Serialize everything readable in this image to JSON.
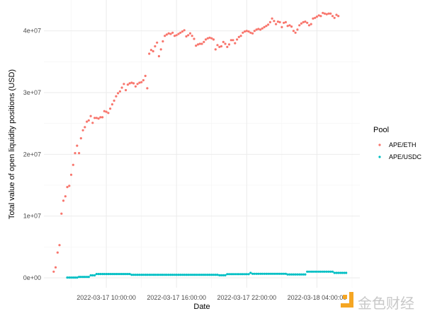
{
  "chart_data": {
    "type": "scatter",
    "title": "",
    "xlabel": "Date",
    "ylabel": "Total value of open liquidity positions (USD)",
    "xlim": [
      "2022-03-17 04:40",
      "2022-03-18 07:40"
    ],
    "ylim": [
      -1600000,
      45000000
    ],
    "grid": true,
    "legend_position": "right",
    "legend_title": "Pool",
    "x_ticks": [
      {
        "value": "2022-03-17 10:00",
        "label": "2022-03-17 10:00:00"
      },
      {
        "value": "2022-03-17 16:00",
        "label": "2022-03-17 16:00:00"
      },
      {
        "value": "2022-03-17 22:00",
        "label": "2022-03-17 22:00:00"
      },
      {
        "value": "2022-03-18 04:00",
        "label": "2022-03-18 04:00:00"
      }
    ],
    "y_ticks": [
      {
        "value": 0,
        "label": "0e+00"
      },
      {
        "value": 10000000,
        "label": "1e+07"
      },
      {
        "value": 20000000,
        "label": "2e+07"
      },
      {
        "value": 30000000,
        "label": "3e+07"
      },
      {
        "value": 40000000,
        "label": "4e+07"
      }
    ],
    "x": [
      "2022-03-17 05:30",
      "2022-03-17 05:40",
      "2022-03-17 05:50",
      "2022-03-17 06:00",
      "2022-03-17 06:10",
      "2022-03-17 06:20",
      "2022-03-17 06:30",
      "2022-03-17 06:40",
      "2022-03-17 06:50",
      "2022-03-17 07:00",
      "2022-03-17 07:10",
      "2022-03-17 07:20",
      "2022-03-17 07:30",
      "2022-03-17 07:40",
      "2022-03-17 07:50",
      "2022-03-17 08:00",
      "2022-03-17 08:10",
      "2022-03-17 08:20",
      "2022-03-17 08:30",
      "2022-03-17 08:40",
      "2022-03-17 08:50",
      "2022-03-17 09:00",
      "2022-03-17 09:10",
      "2022-03-17 09:20",
      "2022-03-17 09:30",
      "2022-03-17 09:40",
      "2022-03-17 09:50",
      "2022-03-17 10:00",
      "2022-03-17 10:10",
      "2022-03-17 10:20",
      "2022-03-17 10:30",
      "2022-03-17 10:40",
      "2022-03-17 10:50",
      "2022-03-17 11:00",
      "2022-03-17 11:10",
      "2022-03-17 11:20",
      "2022-03-17 11:30",
      "2022-03-17 11:40",
      "2022-03-17 11:50",
      "2022-03-17 12:00",
      "2022-03-17 12:10",
      "2022-03-17 12:20",
      "2022-03-17 12:30",
      "2022-03-17 12:40",
      "2022-03-17 12:50",
      "2022-03-17 13:00",
      "2022-03-17 13:10",
      "2022-03-17 13:20",
      "2022-03-17 13:30",
      "2022-03-17 13:40",
      "2022-03-17 13:50",
      "2022-03-17 14:00",
      "2022-03-17 14:10",
      "2022-03-17 14:20",
      "2022-03-17 14:30",
      "2022-03-17 14:40",
      "2022-03-17 14:50",
      "2022-03-17 15:00",
      "2022-03-17 15:10",
      "2022-03-17 15:20",
      "2022-03-17 15:30",
      "2022-03-17 15:40",
      "2022-03-17 15:50",
      "2022-03-17 16:00",
      "2022-03-17 16:10",
      "2022-03-17 16:20",
      "2022-03-17 16:30",
      "2022-03-17 16:40",
      "2022-03-17 16:50",
      "2022-03-17 17:00",
      "2022-03-17 17:10",
      "2022-03-17 17:20",
      "2022-03-17 17:30",
      "2022-03-17 17:40",
      "2022-03-17 17:50",
      "2022-03-17 18:00",
      "2022-03-17 18:10",
      "2022-03-17 18:20",
      "2022-03-17 18:30",
      "2022-03-17 18:40",
      "2022-03-17 18:50",
      "2022-03-17 19:00",
      "2022-03-17 19:10",
      "2022-03-17 19:20",
      "2022-03-17 19:30",
      "2022-03-17 19:40",
      "2022-03-17 19:50",
      "2022-03-17 20:00",
      "2022-03-17 20:10",
      "2022-03-17 20:20",
      "2022-03-17 20:30",
      "2022-03-17 20:40",
      "2022-03-17 20:50",
      "2022-03-17 21:00",
      "2022-03-17 21:10",
      "2022-03-17 21:20",
      "2022-03-17 21:30",
      "2022-03-17 21:40",
      "2022-03-17 21:50",
      "2022-03-17 22:00",
      "2022-03-17 22:10",
      "2022-03-17 22:20",
      "2022-03-17 22:30",
      "2022-03-17 22:40",
      "2022-03-17 22:50",
      "2022-03-17 23:00",
      "2022-03-17 23:10",
      "2022-03-17 23:20",
      "2022-03-17 23:30",
      "2022-03-17 23:40",
      "2022-03-17 23:50",
      "2022-03-18 00:00",
      "2022-03-18 00:10",
      "2022-03-18 00:20",
      "2022-03-18 00:30",
      "2022-03-18 00:40",
      "2022-03-18 00:50",
      "2022-03-18 01:00",
      "2022-03-18 01:10",
      "2022-03-18 01:20",
      "2022-03-18 01:30",
      "2022-03-18 01:40",
      "2022-03-18 01:50",
      "2022-03-18 02:00",
      "2022-03-18 02:10",
      "2022-03-18 02:20",
      "2022-03-18 02:30",
      "2022-03-18 02:40",
      "2022-03-18 02:50",
      "2022-03-18 03:00",
      "2022-03-18 03:10",
      "2022-03-18 03:20",
      "2022-03-18 03:30",
      "2022-03-18 03:40",
      "2022-03-18 03:50",
      "2022-03-18 04:00",
      "2022-03-18 04:10",
      "2022-03-18 04:20",
      "2022-03-18 04:30",
      "2022-03-18 04:40",
      "2022-03-18 04:50",
      "2022-03-18 05:00",
      "2022-03-18 05:10",
      "2022-03-18 05:20",
      "2022-03-18 05:30",
      "2022-03-18 05:40",
      "2022-03-18 05:50",
      "2022-03-18 06:00",
      "2022-03-18 06:10",
      "2022-03-18 06:20",
      "2022-03-18 06:30"
    ],
    "series": [
      {
        "name": "APE/ETH",
        "color": "#F8766D",
        "values": [
          1000000,
          1700000,
          4100000,
          5300000,
          10400000,
          12500000,
          13200000,
          14700000,
          14900000,
          16700000,
          18300000,
          20200000,
          21400000,
          20200000,
          22600000,
          23900000,
          24400000,
          25300000,
          25500000,
          26200000,
          25100000,
          25900000,
          25900000,
          25800000,
          26000000,
          26000000,
          27000000,
          26900000,
          26700000,
          27400000,
          28100000,
          28700000,
          29400000,
          29900000,
          30200000,
          30800000,
          31400000,
          30400000,
          31300000,
          31500000,
          31600000,
          31500000,
          31000000,
          31400000,
          31600000,
          31700000,
          32000000,
          32700000,
          30700000,
          36300000,
          36900000,
          36700000,
          37500000,
          38100000,
          35900000,
          37000000,
          38300000,
          39200000,
          39400000,
          39600000,
          39500000,
          39700000,
          39200000,
          39300000,
          39500000,
          39700000,
          39900000,
          40100000,
          39100000,
          39300000,
          39600000,
          39200000,
          38700000,
          37600000,
          37800000,
          37900000,
          37900000,
          38200000,
          38600000,
          38800000,
          38900000,
          38800000,
          38600000,
          37000000,
          37700000,
          37400000,
          37500000,
          38200000,
          37900000,
          37400000,
          37800000,
          38500000,
          38500000,
          38000000,
          38600000,
          39000000,
          39200000,
          39700000,
          39900000,
          40000000,
          39900000,
          39700000,
          39600000,
          40000000,
          40200000,
          40300000,
          40200000,
          40400000,
          40600000,
          40800000,
          41000000,
          41400000,
          42000000,
          41600000,
          41100000,
          41500000,
          41400000,
          40600000,
          41300000,
          41400000,
          40800000,
          40900000,
          40700000,
          40000000,
          39700000,
          40200000,
          40900000,
          41200000,
          41400000,
          41500000,
          41300000,
          40900000,
          41100000,
          42000000,
          42100000,
          42300000,
          42500000,
          42400000,
          42900000,
          42800000,
          42700000,
          42800000,
          42800000,
          42400000,
          42100000,
          42600000,
          42400000,
          null,
          null,
          null,
          null
        ]
      },
      {
        "name": "APE/USDC",
        "color": "#00BFC4",
        "values": [
          null,
          null,
          null,
          null,
          null,
          null,
          null,
          50000,
          50000,
          50000,
          50000,
          50000,
          50000,
          150000,
          150000,
          150000,
          150000,
          150000,
          150000,
          400000,
          400000,
          400000,
          620000,
          620000,
          620000,
          620000,
          620000,
          620000,
          620000,
          620000,
          620000,
          620000,
          620000,
          620000,
          620000,
          620000,
          620000,
          620000,
          620000,
          620000,
          500000,
          500000,
          500000,
          500000,
          500000,
          500000,
          500000,
          500000,
          500000,
          500000,
          500000,
          500000,
          500000,
          500000,
          500000,
          500000,
          500000,
          500000,
          500000,
          500000,
          500000,
          500000,
          500000,
          500000,
          500000,
          500000,
          500000,
          500000,
          500000,
          500000,
          500000,
          500000,
          500000,
          500000,
          500000,
          500000,
          500000,
          500000,
          500000,
          500000,
          500000,
          500000,
          500000,
          500000,
          500000,
          420000,
          420000,
          420000,
          420000,
          600000,
          600000,
          600000,
          600000,
          600000,
          600000,
          600000,
          600000,
          600000,
          600000,
          600000,
          600000,
          800000,
          650000,
          650000,
          650000,
          650000,
          650000,
          650000,
          650000,
          650000,
          650000,
          650000,
          650000,
          650000,
          650000,
          650000,
          650000,
          650000,
          650000,
          650000,
          550000,
          550000,
          550000,
          550000,
          550000,
          550000,
          550000,
          550000,
          550000,
          550000,
          1000000,
          1000000,
          1000000,
          1000000,
          1000000,
          1000000,
          1000000,
          1000000,
          1000000,
          1000000,
          1000000,
          1000000,
          1000000,
          1000000,
          800000,
          800000,
          800000,
          800000,
          800000,
          800000,
          800000
        ]
      }
    ]
  },
  "watermark": {
    "text": "金色财经",
    "icon": "jinse-logo-icon",
    "color": "#F5A623"
  }
}
